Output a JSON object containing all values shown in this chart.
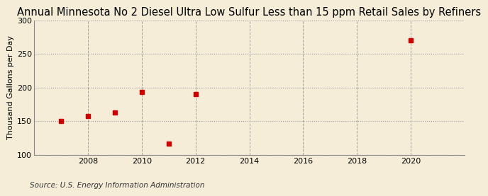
{
  "title": "Annual Minnesota No 2 Diesel Ultra Low Sulfur Less than 15 ppm Retail Sales by Refiners",
  "ylabel": "Thousand Gallons per Day",
  "source": "Source: U.S. Energy Information Administration",
  "x_values": [
    2007,
    2008,
    2009,
    2010,
    2011,
    2012,
    2020
  ],
  "y_values": [
    150,
    157,
    163,
    193,
    116,
    190,
    270
  ],
  "xlim": [
    2006.0,
    2022.0
  ],
  "ylim": [
    100,
    300
  ],
  "yticks": [
    100,
    150,
    200,
    250,
    300
  ],
  "xticks": [
    2008,
    2010,
    2012,
    2014,
    2016,
    2018,
    2020
  ],
  "marker_color": "#cc0000",
  "marker": "s",
  "marker_size": 4,
  "background_color": "#f5edd8",
  "grid_color": "#999999",
  "title_fontsize": 10.5,
  "label_fontsize": 8,
  "tick_fontsize": 8,
  "source_fontsize": 7.5
}
